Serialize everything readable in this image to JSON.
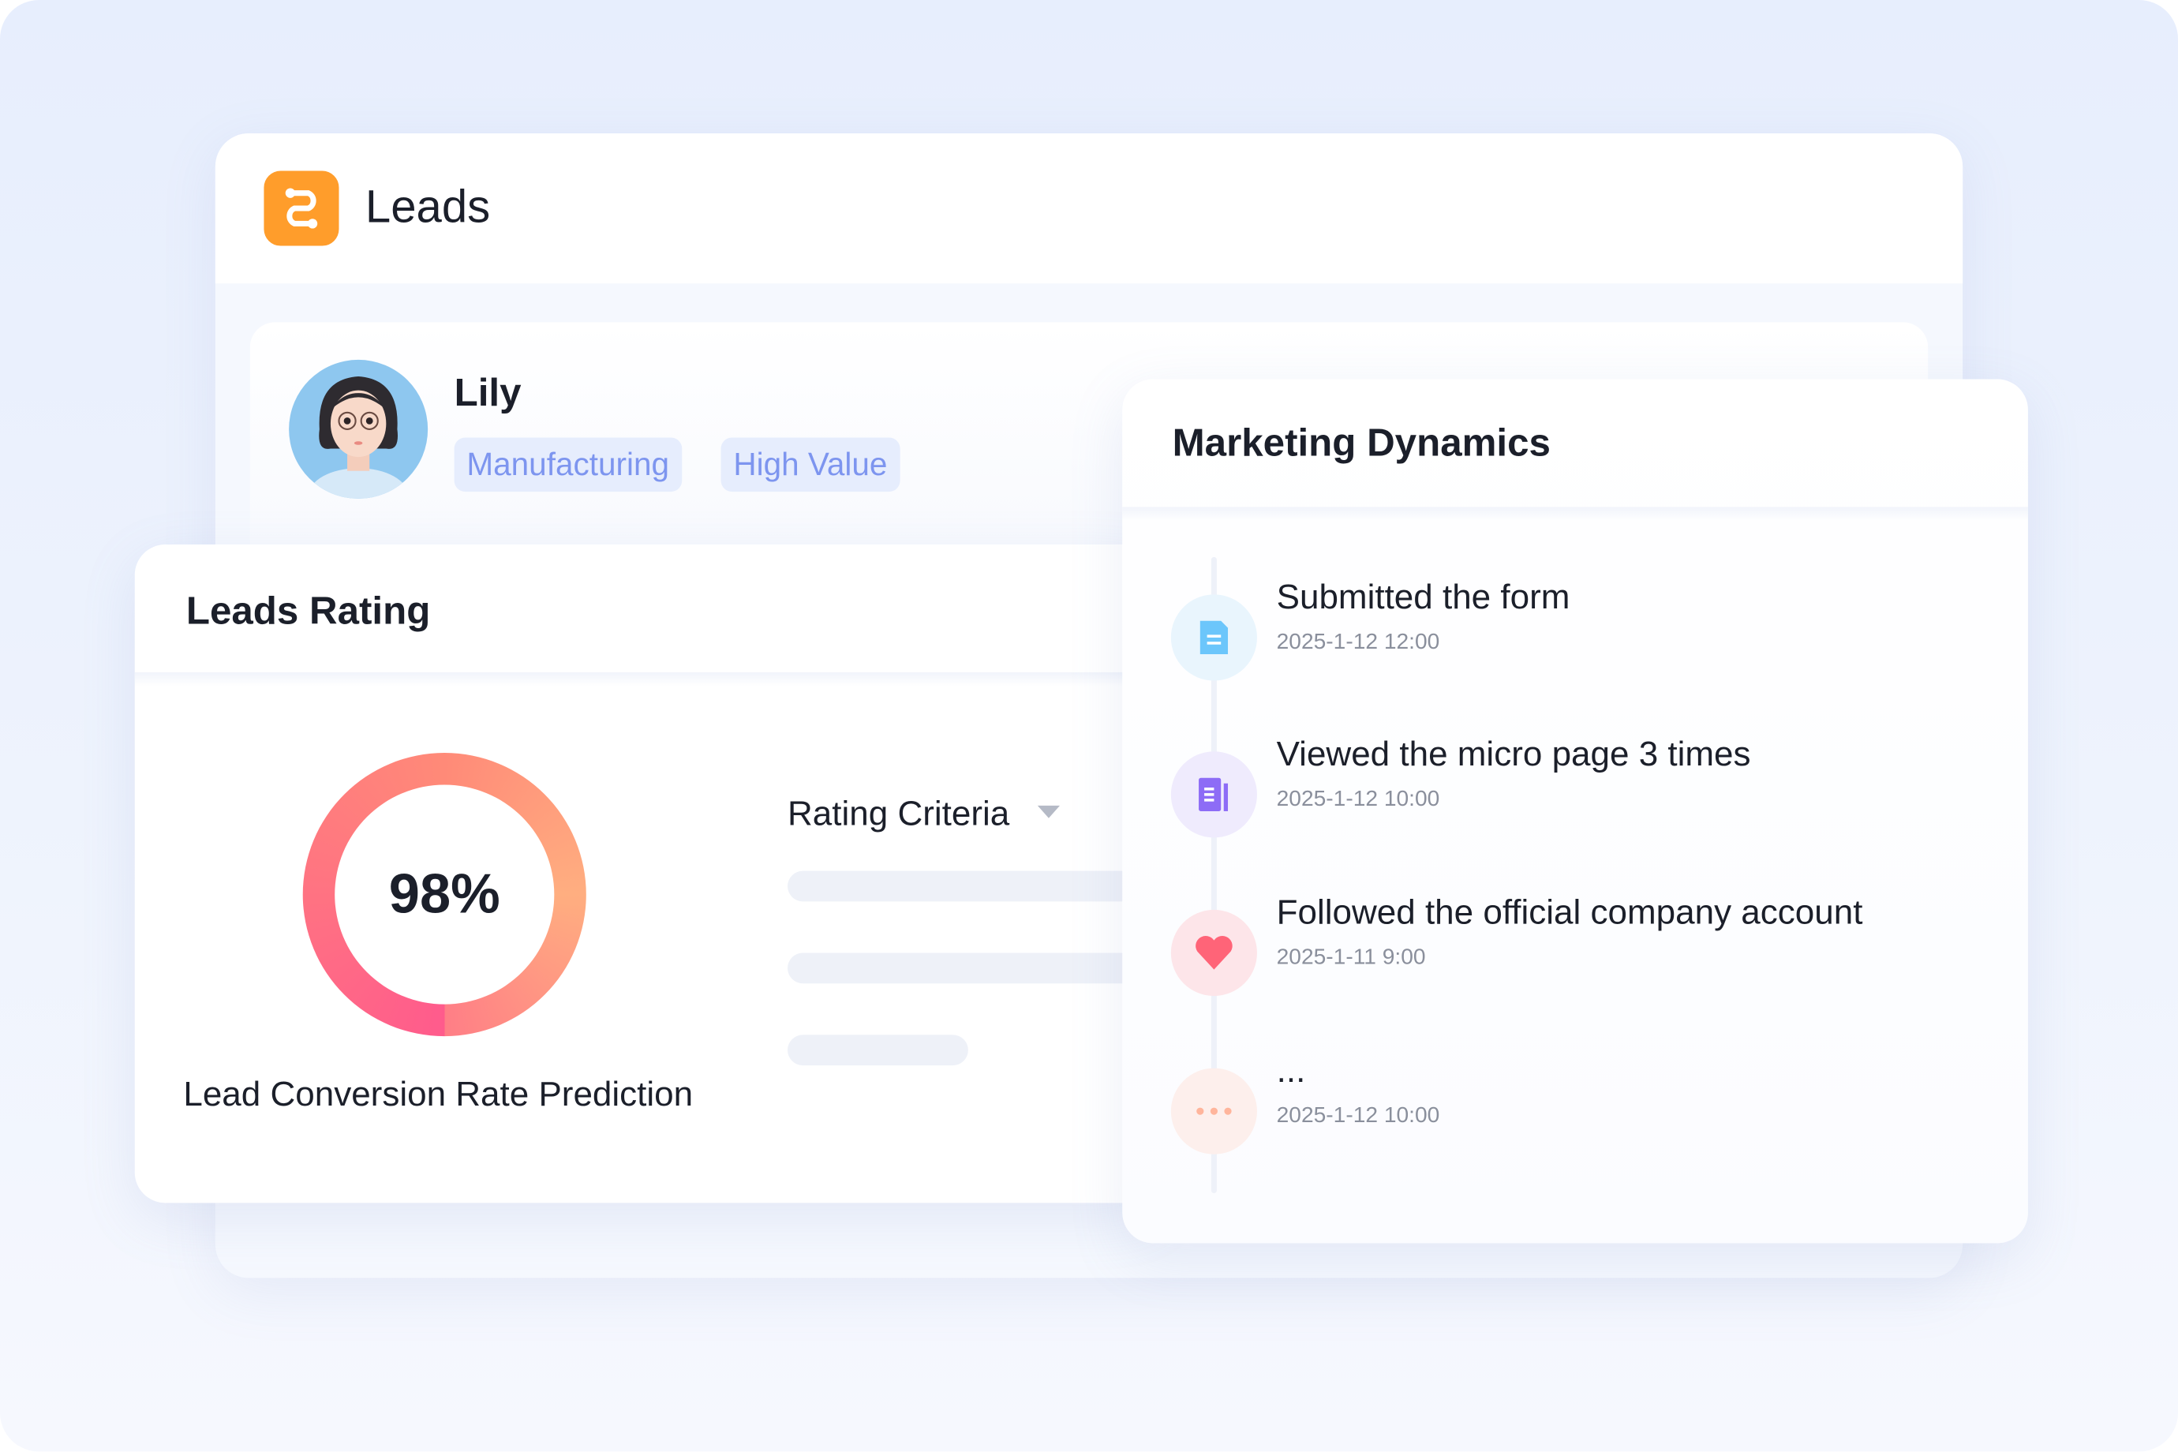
{
  "header": {
    "title": "Leads",
    "logo_icon": "route-icon",
    "accent": "#ff9d2b"
  },
  "profile": {
    "name": "Lily",
    "tags": [
      "Manufacturing",
      "High Value"
    ]
  },
  "rating": {
    "title": "Leads Rating",
    "percent_label": "98%",
    "percent": 98,
    "caption": "Lead Conversion Rate Prediction",
    "criteria_label": "Rating Criteria"
  },
  "dynamics": {
    "title": "Marketing Dynamics",
    "events": [
      {
        "title": "Submitted the form",
        "date": "2025-1-12  12:00",
        "icon": "form-icon",
        "color": "#6cc6fb"
      },
      {
        "title": "Viewed the micro page 3 times",
        "date": "2025-1-12  10:00",
        "icon": "page-icon",
        "color": "#8d6cf6"
      },
      {
        "title": "Followed the official company account",
        "date": "2025-1-11  9:00",
        "icon": "heart-icon",
        "color": "#ff6478"
      },
      {
        "title": "...",
        "date": "2025-1-12  10:00",
        "icon": "more-icon",
        "color": "#ffb59c"
      }
    ]
  }
}
